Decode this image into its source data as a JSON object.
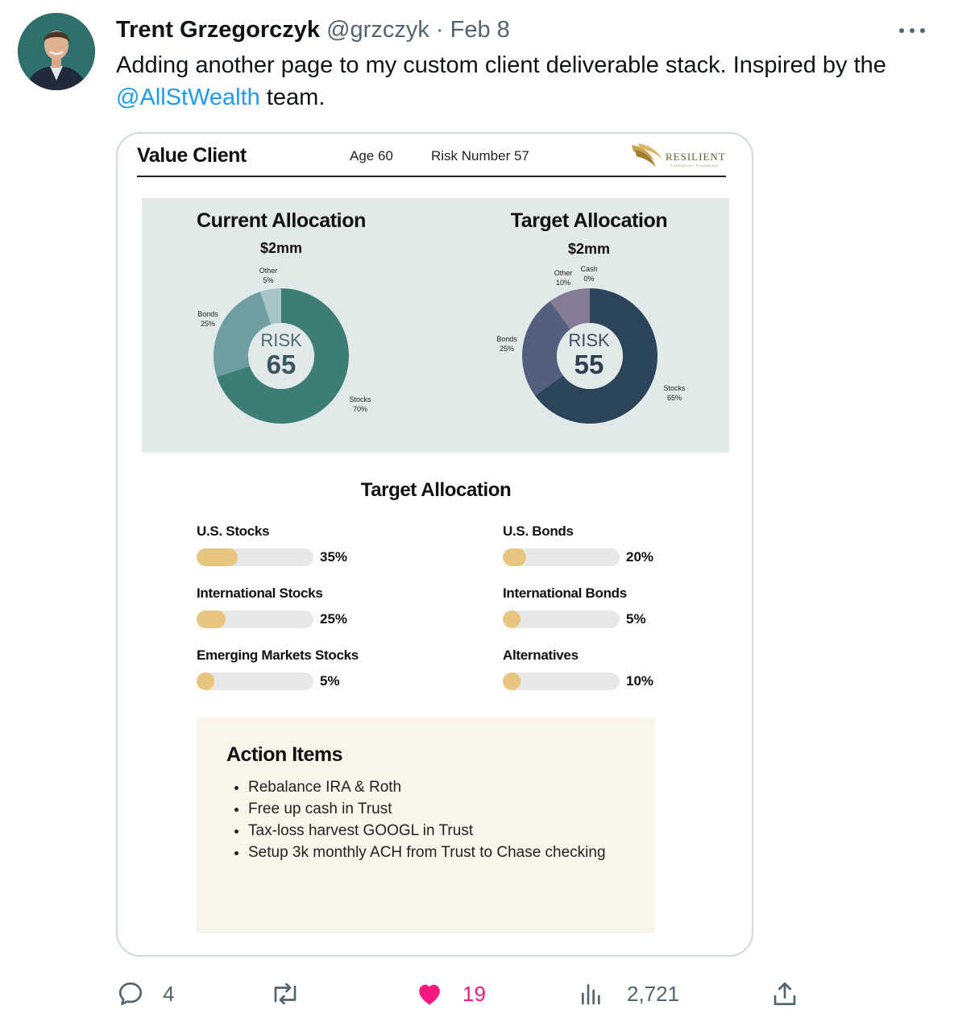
{
  "tweet": {
    "author_name": "Trent Grzegorczyk",
    "handle": "@grzczyk",
    "separator": "·",
    "date": "Feb 8",
    "text_before": "Adding another page to my custom client deliverable stack. Inspired by the ",
    "mention": "@AllStWealth",
    "text_after": " team."
  },
  "document": {
    "client_name": "Value Client",
    "age": "Age 60",
    "risk_number": "Risk Number 57",
    "logo_text": "RESILIENT",
    "logo_subtext": "FINANCIAL PLANNING",
    "current": {
      "title": "Current Allocation",
      "amount": "$2mm",
      "risk_label": "RISK",
      "risk_value": "65",
      "labels": {
        "other": [
          "Other",
          "5%"
        ],
        "bonds": [
          "Bonds",
          "25%"
        ],
        "stocks": [
          "Stocks",
          "70%"
        ]
      }
    },
    "target": {
      "title": "Target Allocation",
      "amount": "$2mm",
      "risk_label": "RISK",
      "risk_value": "55",
      "labels": {
        "other": [
          "Other",
          "10%"
        ],
        "cash": [
          "Cash",
          "0%"
        ],
        "bonds": [
          "Bonds",
          "25%"
        ],
        "stocks": [
          "Stocks",
          "65%"
        ]
      }
    },
    "target_breakdown_title": "Target Allocation",
    "bars": [
      {
        "label": "U.S. Stocks",
        "pct_text": "35%",
        "value": 35
      },
      {
        "label": "U.S. Bonds",
        "pct_text": "20%",
        "value": 20
      },
      {
        "label": "International Stocks",
        "pct_text": "25%",
        "value": 25
      },
      {
        "label": "International Bonds",
        "pct_text": "5%",
        "value": 5
      },
      {
        "label": "Emerging Markets Stocks",
        "pct_text": "5%",
        "value": 5
      },
      {
        "label": "Alternatives",
        "pct_text": "10%",
        "value": 10
      }
    ],
    "action_items_title": "Action Items",
    "action_items": [
      "Rebalance IRA & Roth",
      "Free up cash in Trust",
      "Tax-loss harvest GOOGL in Trust",
      "Setup 3k monthly ACH from Trust to Chase checking"
    ]
  },
  "chart_data": [
    {
      "type": "pie",
      "title": "Current Allocation",
      "categories": [
        "Stocks",
        "Bonds",
        "Other"
      ],
      "values": [
        70,
        25,
        5
      ],
      "colors": [
        "#3d7d76",
        "#6f9ea1",
        "#a9c4c7"
      ]
    },
    {
      "type": "pie",
      "title": "Target Allocation",
      "categories": [
        "Stocks",
        "Bonds",
        "Other",
        "Cash"
      ],
      "values": [
        65,
        25,
        10,
        0
      ],
      "colors": [
        "#2c455a",
        "#545e7d",
        "#857b95",
        "#b7b3c0"
      ]
    },
    {
      "type": "bar",
      "title": "Target Allocation",
      "categories": [
        "U.S. Stocks",
        "U.S. Bonds",
        "International Stocks",
        "International Bonds",
        "Emerging Markets Stocks",
        "Alternatives"
      ],
      "values": [
        35,
        20,
        25,
        5,
        5,
        10
      ],
      "colors": [
        "#e9c67f"
      ]
    }
  ],
  "actions": {
    "replies": "4",
    "retweets": "",
    "likes": "19",
    "views": "2,721"
  },
  "colors": {
    "link": "#1d9bf0",
    "like": "#f91880",
    "muted": "#536471"
  }
}
